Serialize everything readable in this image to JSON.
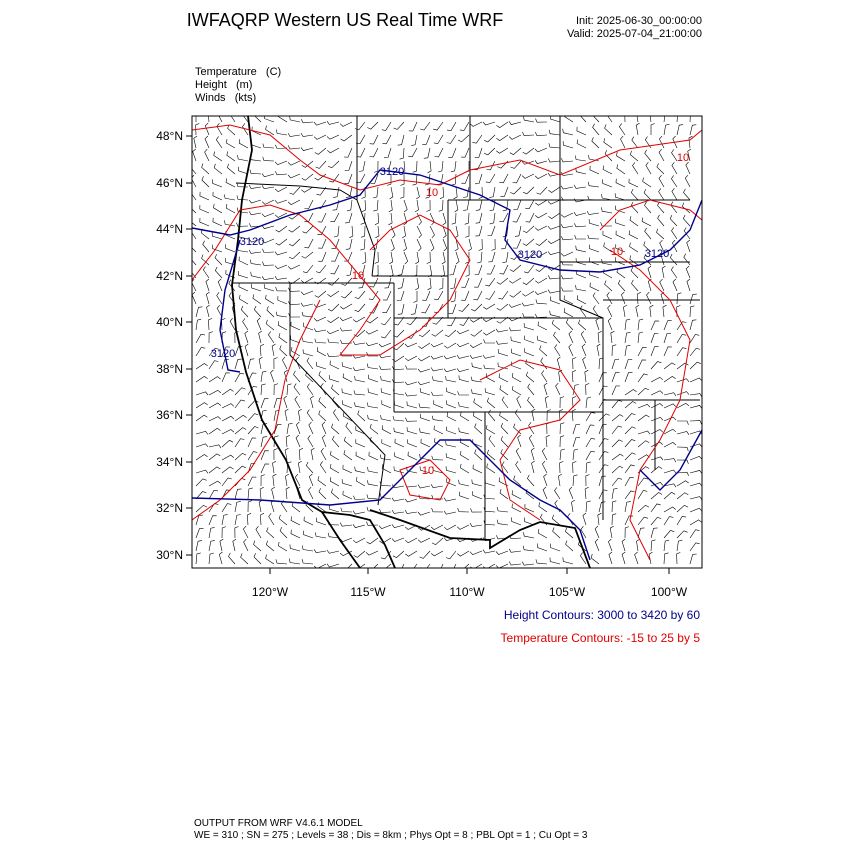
{
  "header": {
    "title": "IWFAQRP Western US Real Time WRF",
    "init": "Init: 2025-06-30_00:00:00",
    "valid": "Valid: 2025-07-04_21:00:00"
  },
  "fields": [
    "Temperature   (C)",
    "Height   (m)",
    "Winds   (kts)"
  ],
  "map": {
    "lat_labels": [
      "48°N",
      "46°N",
      "44°N",
      "42°N",
      "40°N",
      "38°N",
      "36°N",
      "34°N",
      "32°N",
      "30°N"
    ],
    "lon_labels": [
      "120°W",
      "115°W",
      "110°W",
      "105°W",
      "100°W"
    ],
    "height_labels": [
      "3120",
      "3120",
      "3120",
      "3120",
      "3120"
    ],
    "temperature_labels": [
      "10",
      "10",
      "10",
      "10",
      "10"
    ]
  },
  "legend": {
    "height": "Height Contours: 3000 to 3420 by 60",
    "temperature": "Temperature Contours: -15 to 25 by 5"
  },
  "footer": {
    "model": "OUTPUT FROM WRF V4.6.1 MODEL",
    "settings": "WE = 310 ; SN = 275 ; Levels = 38 ; Dis = 8km ; Phys Opt = 8 ; PBL Opt = 1 ; Cu Opt = 3"
  }
}
